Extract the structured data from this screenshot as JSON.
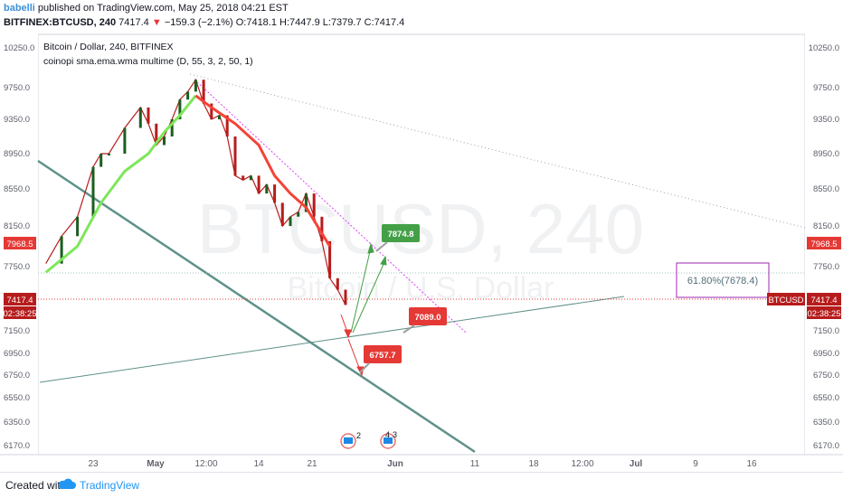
{
  "header": {
    "username": "babelli",
    "published_text": "published on TradingView.com, May 25, 2018 04:21 EST",
    "symbol": "BITFINEX:BTCUSD, 240",
    "last": "7417.4",
    "change": "−159.3 (−2.1%)",
    "open": "O:7418.1",
    "high": "H:7447.9",
    "low": "L:7379.7",
    "close": "C:7417.4"
  },
  "legend": {
    "title": "Bitcoin / Dollar, 240, BITFINEX",
    "indicator": "coinopi sma.ema.wma multime (D, 55, 3, 2, 50, 1)"
  },
  "watermark": {
    "main": "BTCUSD, 240",
    "sub": "Bitcoin / U.S. Dollar"
  },
  "badges": {
    "left_high": "7968.5",
    "left_price": "7417.4",
    "left_time": "02:38:25",
    "right_high": "7968.5",
    "right_symbol": "BTCUSD",
    "right_price": "7417.4",
    "right_time": "02:38:25"
  },
  "annotations": {
    "fib": "61.80%(7678.4)",
    "target_up": "7874.8",
    "target_mid": "7089.0",
    "target_down": "6757.7",
    "event1": "2",
    "event2": "4",
    "event3": "3"
  },
  "footer": {
    "created_with": "Created with",
    "brand": "TradingView"
  },
  "chart_data": {
    "type": "line",
    "title": "Bitcoin / Dollar, 240, BITFINEX",
    "symbol": "BITFINEX:BTCUSD",
    "interval": "240",
    "y_ticks": [
      "10250.0",
      "9750.0",
      "9350.0",
      "8950.0",
      "8550.0",
      "8150.0",
      "7750.0",
      "7350.0",
      "7150.0",
      "6950.0",
      "6750.0",
      "6550.0",
      "6350.0",
      "6170.0"
    ],
    "x_ticks": [
      "23",
      "May",
      "12:00",
      "14",
      "21",
      "Jun",
      "11",
      "18",
      "12:00",
      "Jul",
      "9",
      "16"
    ],
    "ylim": [
      6100,
      10400
    ],
    "price_path": {
      "x": [
        "Apr 17",
        "Apr 19",
        "Apr 21",
        "Apr 23",
        "Apr 24",
        "Apr 25",
        "Apr 27",
        "Apr 29",
        "Apr 30",
        "May 1",
        "May 2",
        "May 3",
        "May 4",
        "May 5",
        "May 6",
        "May 7",
        "May 8",
        "May 9",
        "May 10",
        "May 11",
        "May 12",
        "May 13",
        "May 14",
        "May 15",
        "May 16",
        "May 17",
        "May 18",
        "May 19",
        "May 20",
        "May 21",
        "May 22",
        "May 23",
        "May 24",
        "May 25"
      ],
      "y": [
        7780,
        8050,
        8250,
        8800,
        8950,
        8950,
        9250,
        9500,
        9300,
        9050,
        9150,
        9350,
        9600,
        9700,
        9850,
        9550,
        9350,
        9400,
        9150,
        8700,
        8650,
        8700,
        8500,
        8600,
        8400,
        8150,
        8250,
        8300,
        8500,
        8250,
        8000,
        7650,
        7550,
        7417.4
      ]
    },
    "indicator_line": {
      "green_segment": {
        "x": [
          "Apr 17",
          "Apr 21",
          "Apr 24",
          "Apr 27",
          "Apr 30",
          "May 2",
          "May 4",
          "May 6"
        ],
        "y": [
          7700,
          7950,
          8400,
          8750,
          8950,
          9200,
          9400,
          9650
        ]
      },
      "red_segment": {
        "x": [
          "May 6",
          "May 8",
          "May 11",
          "May 14",
          "May 16",
          "May 18",
          "May 20",
          "May 23"
        ],
        "y": [
          9650,
          9500,
          9300,
          9050,
          8700,
          8500,
          8350,
          7950
        ]
      }
    },
    "levels": {
      "last_price": 7417.4,
      "fib_61_8": 7678.4,
      "prior_high": 7968.5
    },
    "targets": {
      "up": 7874.8,
      "mid": 7089.0,
      "down": 6757.7
    },
    "grid": false
  }
}
